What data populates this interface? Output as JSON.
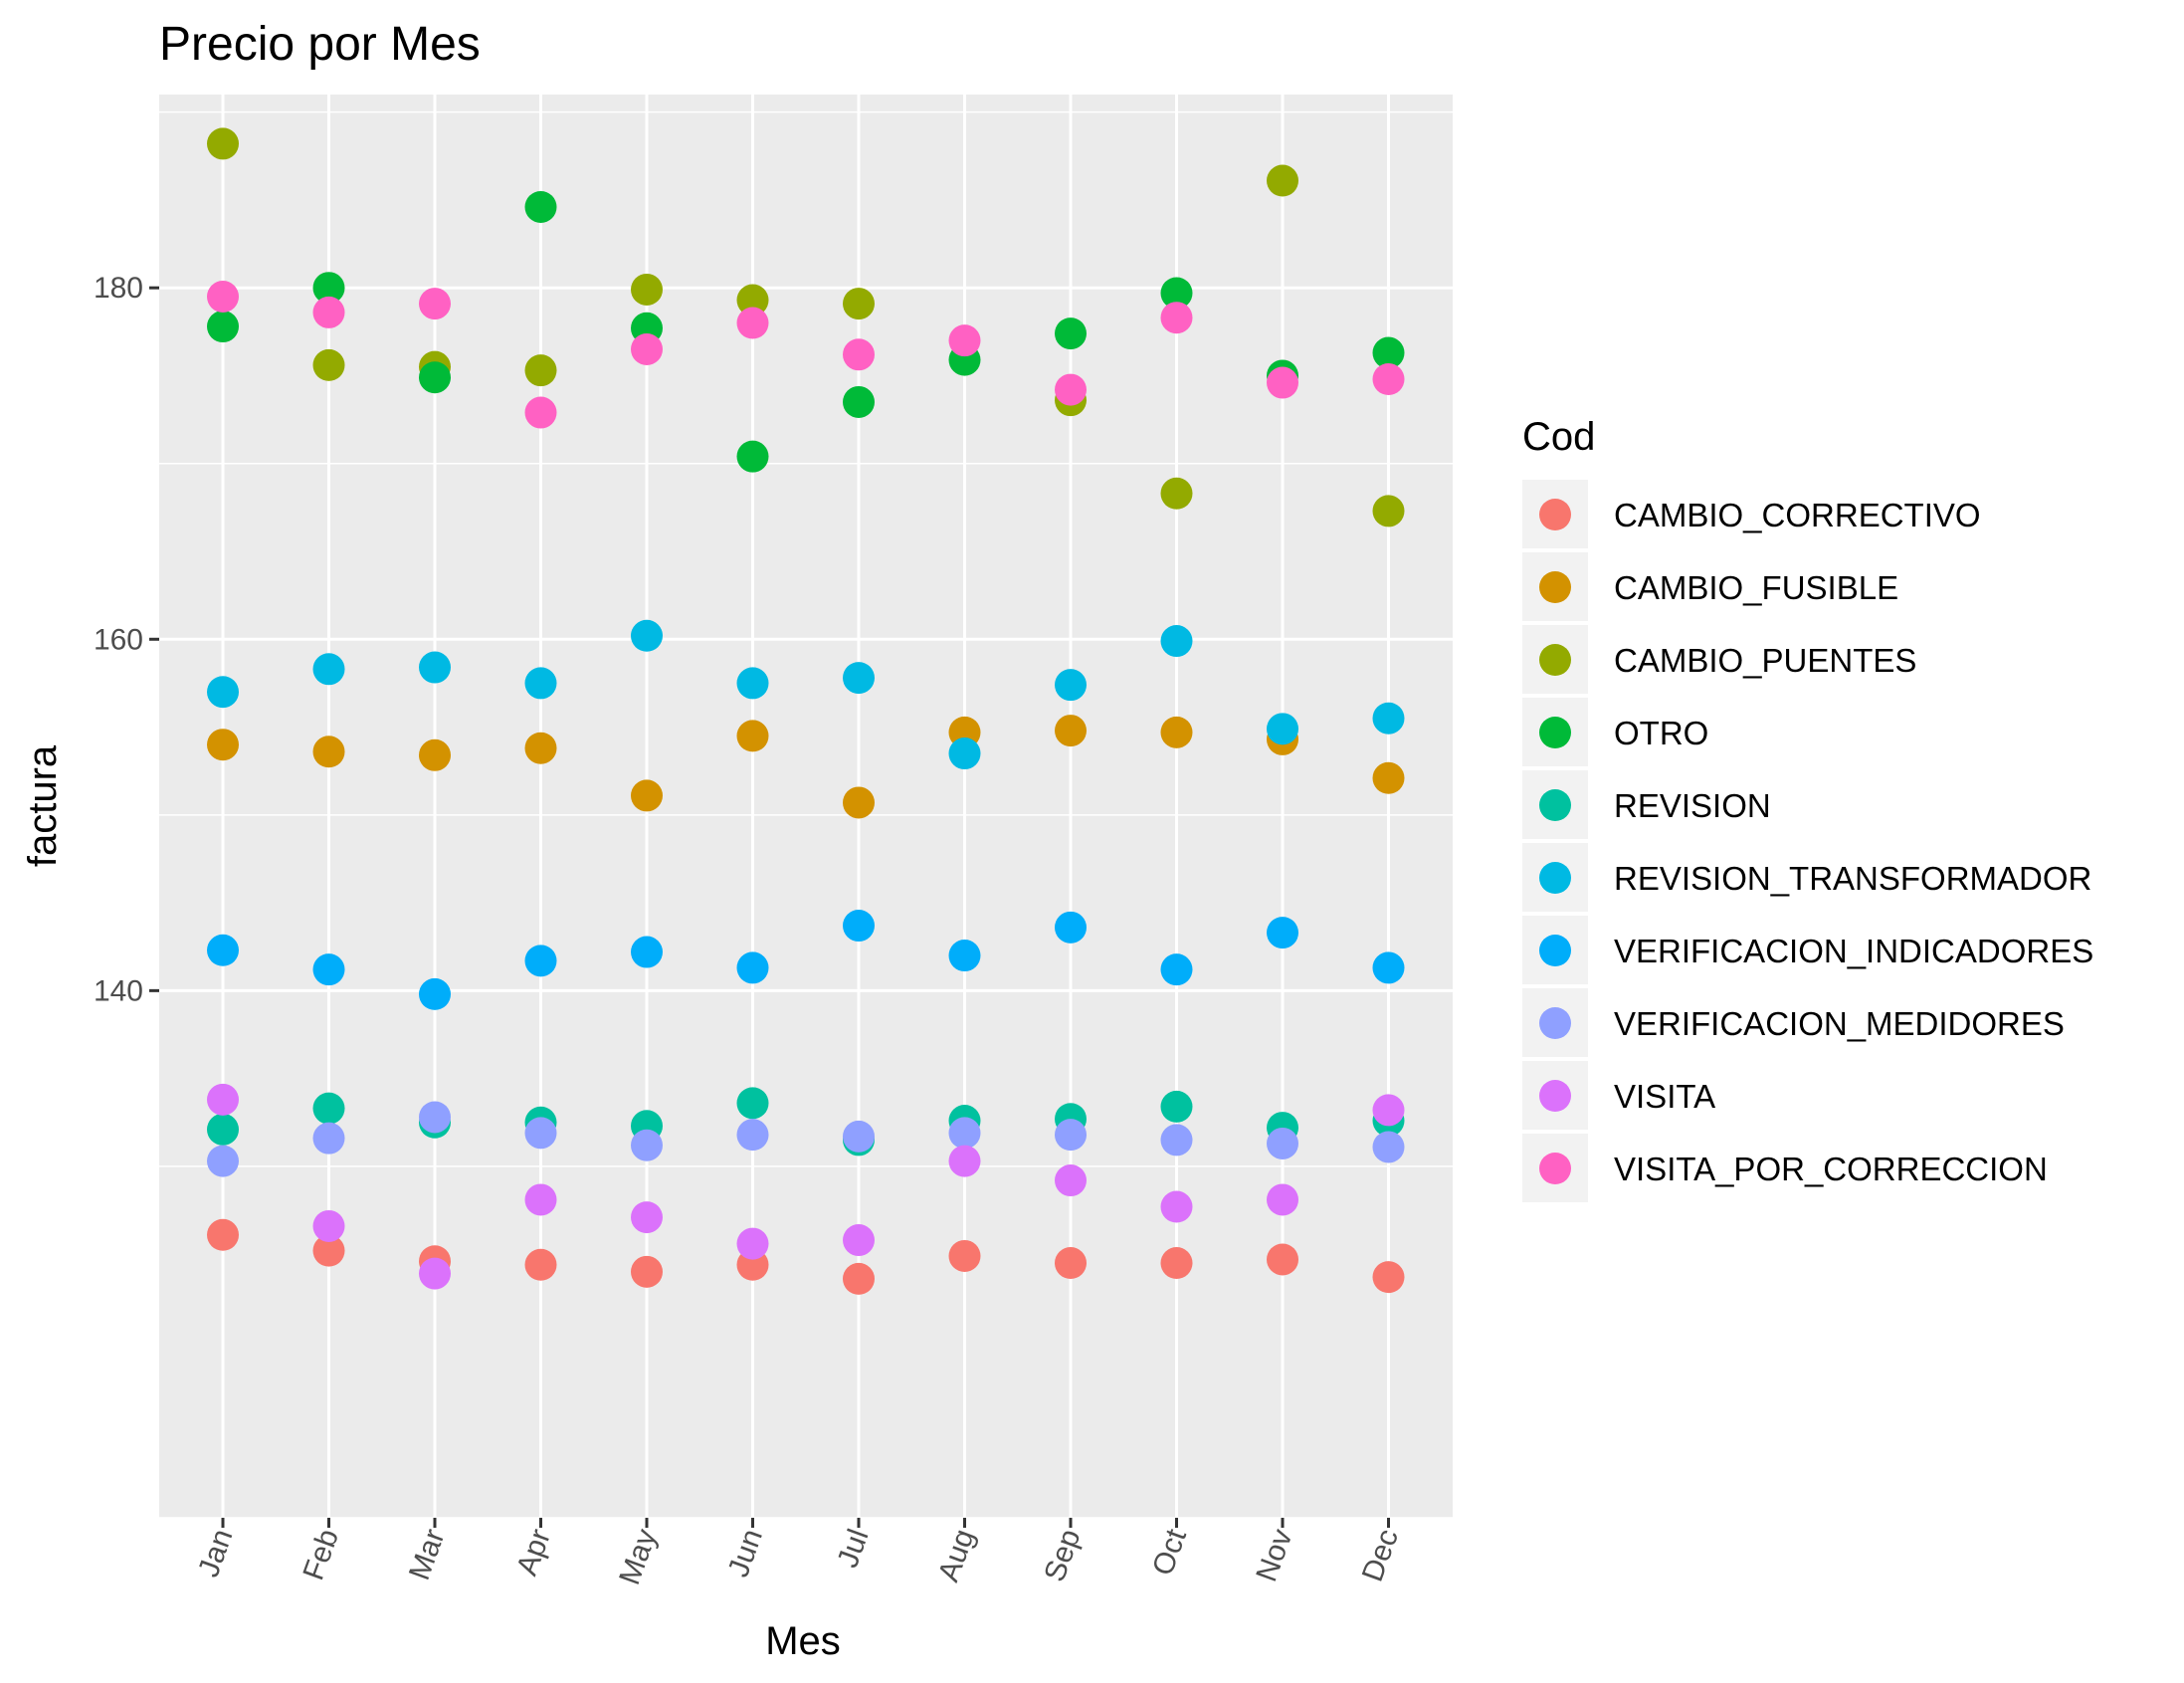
{
  "chart_data": {
    "type": "scatter",
    "title": "Precio por Mes",
    "xlabel": "Mes",
    "ylabel": "factura",
    "categories": [
      "Jan",
      "Feb",
      "Mar",
      "Apr",
      "May",
      "Jun",
      "Jul",
      "Aug",
      "Sep",
      "Oct",
      "Nov",
      "Dec"
    ],
    "ylim": [
      110,
      191
    ],
    "yticks": [
      140,
      160,
      180
    ],
    "grid": true,
    "legend": {
      "title": "Cod",
      "position": "right"
    },
    "series": [
      {
        "name": "CAMBIO_CORRECTIVO",
        "color": "#F8766D",
        "values": [
          126.1,
          125.2,
          124.6,
          124.4,
          124.0,
          124.4,
          123.6,
          124.9,
          124.5,
          124.5,
          124.7,
          123.7
        ]
      },
      {
        "name": "CAMBIO_FUSIBLE",
        "color": "#D39200",
        "values": [
          154.0,
          153.6,
          153.4,
          153.8,
          151.1,
          154.5,
          150.7,
          154.7,
          154.8,
          154.7,
          154.3,
          152.1
        ]
      },
      {
        "name": "CAMBIO_PUENTES",
        "color": "#93AA00",
        "values": [
          188.2,
          175.6,
          175.5,
          175.3,
          179.9,
          179.3,
          179.1,
          null,
          173.6,
          168.3,
          186.1,
          167.3
        ]
      },
      {
        "name": "OTRO",
        "color": "#00BA38",
        "values": [
          177.8,
          180.0,
          174.9,
          184.6,
          177.7,
          170.4,
          173.5,
          175.9,
          177.4,
          179.7,
          175.0,
          176.3
        ]
      },
      {
        "name": "REVISION",
        "color": "#00C19F",
        "values": [
          132.1,
          133.3,
          132.5,
          132.5,
          132.3,
          133.6,
          131.5,
          132.6,
          132.7,
          133.4,
          132.2,
          132.6
        ]
      },
      {
        "name": "REVISION_TRANSFORMADOR",
        "color": "#00B9E3",
        "values": [
          157.0,
          158.3,
          158.4,
          157.5,
          160.2,
          157.5,
          157.8,
          153.5,
          157.4,
          159.9,
          154.9,
          155.5
        ]
      },
      {
        "name": "VERIFICACION_INDICADORES",
        "color": "#00ADFA",
        "values": [
          142.3,
          141.2,
          139.8,
          141.7,
          142.2,
          141.3,
          143.7,
          142.0,
          143.6,
          141.2,
          143.3,
          141.3
        ]
      },
      {
        "name": "VERIFICACION_MEDIDORES",
        "color": "#8FA0FF",
        "values": [
          130.3,
          131.6,
          132.8,
          131.9,
          131.2,
          131.8,
          131.7,
          131.9,
          131.8,
          131.5,
          131.3,
          131.1
        ]
      },
      {
        "name": "VISITA",
        "color": "#DB72FB",
        "values": [
          133.8,
          126.6,
          123.9,
          128.1,
          127.1,
          125.6,
          125.8,
          130.3,
          129.2,
          127.7,
          128.1,
          133.2
        ]
      },
      {
        "name": "VISITA_POR_CORRECCION",
        "color": "#FF61C3",
        "values": [
          179.5,
          178.6,
          179.1,
          172.9,
          176.5,
          178.0,
          176.2,
          177.0,
          174.2,
          178.3,
          174.6,
          174.8
        ]
      }
    ]
  }
}
